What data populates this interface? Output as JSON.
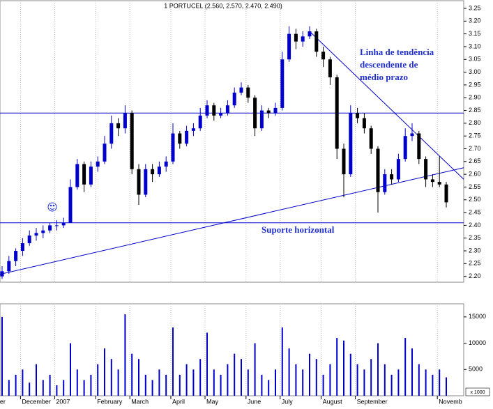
{
  "chart_data": {
    "type": "candlestick",
    "title": "1 PORTUCEL (2.560, 2.570, 2.470, 2.490)",
    "open": [
      2.2,
      2.22,
      2.26,
      2.3,
      2.33,
      2.36,
      2.37,
      2.38,
      2.4,
      2.4,
      2.41,
      2.55,
      2.64,
      2.56,
      2.63,
      2.65,
      2.72,
      2.8,
      2.78,
      2.84,
      2.62,
      2.52,
      2.62,
      2.6,
      2.63,
      2.65,
      2.76,
      2.72,
      2.77,
      2.78,
      2.83,
      2.87,
      2.83,
      2.84,
      2.87,
      2.92,
      2.94,
      2.9,
      2.78,
      2.85,
      2.84,
      2.86,
      3.05,
      3.15,
      3.12,
      3.14,
      3.16,
      3.08,
      3.05,
      2.98,
      2.7,
      2.6,
      2.84,
      2.82,
      2.78,
      2.7,
      2.53,
      2.6,
      2.58,
      2.66,
      2.75,
      2.76,
      2.66,
      2.58,
      2.57,
      2.56
    ],
    "high": [
      2.24,
      2.28,
      2.31,
      2.35,
      2.38,
      2.39,
      2.4,
      2.41,
      2.42,
      2.43,
      2.58,
      2.66,
      2.65,
      2.65,
      2.67,
      2.75,
      2.83,
      2.82,
      2.87,
      2.85,
      2.64,
      2.64,
      2.64,
      2.65,
      2.67,
      2.8,
      2.77,
      2.79,
      2.8,
      2.86,
      2.89,
      2.88,
      2.86,
      2.89,
      2.94,
      2.96,
      2.95,
      2.91,
      2.87,
      2.86,
      2.88,
      3.08,
      3.18,
      3.17,
      3.16,
      3.18,
      3.17,
      3.1,
      3.06,
      2.99,
      2.72,
      2.87,
      2.86,
      2.84,
      2.79,
      2.71,
      2.62,
      2.62,
      2.68,
      2.78,
      2.8,
      2.77,
      2.67,
      2.6,
      2.67,
      2.57
    ],
    "low": [
      2.19,
      2.21,
      2.24,
      2.28,
      2.32,
      2.34,
      2.35,
      2.37,
      2.38,
      2.39,
      2.41,
      2.54,
      2.53,
      2.55,
      2.61,
      2.64,
      2.7,
      2.75,
      2.76,
      2.6,
      2.48,
      2.51,
      2.57,
      2.59,
      2.61,
      2.64,
      2.7,
      2.71,
      2.75,
      2.77,
      2.82,
      2.81,
      2.82,
      2.83,
      2.86,
      2.91,
      2.88,
      2.75,
      2.77,
      2.82,
      2.83,
      2.85,
      3.04,
      3.09,
      3.1,
      3.13,
      3.06,
      3.02,
      2.95,
      2.66,
      2.51,
      2.59,
      2.8,
      2.76,
      2.68,
      2.45,
      2.52,
      2.56,
      2.57,
      2.65,
      2.73,
      2.64,
      2.55,
      2.55,
      2.55,
      2.47
    ],
    "close": [
      2.22,
      2.26,
      2.3,
      2.33,
      2.36,
      2.37,
      2.38,
      2.4,
      2.4,
      2.41,
      2.55,
      2.64,
      2.56,
      2.63,
      2.65,
      2.72,
      2.8,
      2.78,
      2.84,
      2.62,
      2.52,
      2.62,
      2.6,
      2.63,
      2.65,
      2.76,
      2.72,
      2.77,
      2.78,
      2.83,
      2.87,
      2.83,
      2.84,
      2.87,
      2.92,
      2.94,
      2.9,
      2.78,
      2.85,
      2.84,
      2.86,
      3.05,
      3.15,
      3.12,
      3.14,
      3.16,
      3.08,
      3.05,
      2.98,
      2.7,
      2.6,
      2.84,
      2.82,
      2.78,
      2.7,
      2.53,
      2.6,
      2.58,
      2.66,
      2.75,
      2.76,
      2.66,
      2.58,
      2.57,
      2.56,
      2.49
    ],
    "volume": [
      15000,
      3000,
      4000,
      5000,
      2500,
      6000,
      3000,
      4000,
      2000,
      3000,
      10000,
      5000,
      3000,
      4000,
      6000,
      9000,
      7000,
      5000,
      15500,
      8000,
      7000,
      4000,
      3000,
      5000,
      4000,
      13000,
      4000,
      6000,
      5000,
      7000,
      12000,
      5000,
      4000,
      6000,
      8000,
      7000,
      5000,
      10000,
      4000,
      3000,
      5000,
      13000,
      9000,
      6000,
      5000,
      8000,
      7000,
      4000,
      6000,
      11000,
      10500,
      8000,
      6000,
      5000,
      7000,
      10000,
      6000,
      4000,
      5000,
      11000,
      9000,
      6000,
      5000,
      4000,
      5000,
      3500
    ],
    "up_color": "#0000cc",
    "down_color": "#000000",
    "volume_color": "#0000cc",
    "line_color": "#0000cc",
    "ylim": [
      2.18,
      3.28
    ],
    "yticks": [
      {
        "value": 2.2,
        "label": "2.20"
      },
      2.25,
      {
        "value": 2.3,
        "label": "2.30"
      },
      2.35,
      {
        "value": 2.4,
        "label": "2.40"
      },
      2.45,
      {
        "value": 2.5,
        "label": "2.50"
      },
      2.55,
      {
        "value": 2.6,
        "label": "2.60"
      },
      2.65,
      {
        "value": 2.7,
        "label": "2.70"
      },
      2.75,
      {
        "value": 2.8,
        "label": "2.80"
      },
      2.85,
      {
        "value": 2.9,
        "label": "2.90"
      },
      2.95,
      {
        "value": 3.0,
        "label": "3.00"
      },
      3.05,
      {
        "value": 3.1,
        "label": "3.10"
      },
      3.15,
      {
        "value": 3.2,
        "label": "3.20"
      },
      3.25
    ],
    "volume_ylim": [
      0,
      17500
    ],
    "volume_yticks": [
      5000,
      10000,
      15000
    ],
    "volume_unit": "x 1000",
    "xticks": [
      {
        "value": -2,
        "label": "ember"
      },
      {
        "value": 3,
        "label": "December"
      },
      {
        "value": 8,
        "label": "2007"
      },
      {
        "value": 14,
        "label": "February"
      },
      {
        "value": 19,
        "label": "March"
      },
      {
        "value": 25,
        "label": "April"
      },
      {
        "value": 30,
        "label": "May"
      },
      {
        "value": 36,
        "label": "June"
      },
      {
        "value": 41,
        "label": "July"
      },
      {
        "value": 47,
        "label": "August"
      },
      {
        "value": 52,
        "label": "September"
      },
      {
        "value": 64,
        "label": "Novemb"
      }
    ],
    "grid": true,
    "horizontal_lines": [
      2.84,
      2.41
    ],
    "trendlines": [
      {
        "x": [
          0,
          65
        ],
        "y": [
          2.21,
          2.61
        ]
      },
      {
        "x": [
          45,
          65
        ],
        "y": [
          3.16,
          2.646
        ]
      }
    ],
    "annotations": [
      "Linha de tendência",
      "descendente de",
      "médio prazo",
      "Suporte horizontal"
    ]
  }
}
